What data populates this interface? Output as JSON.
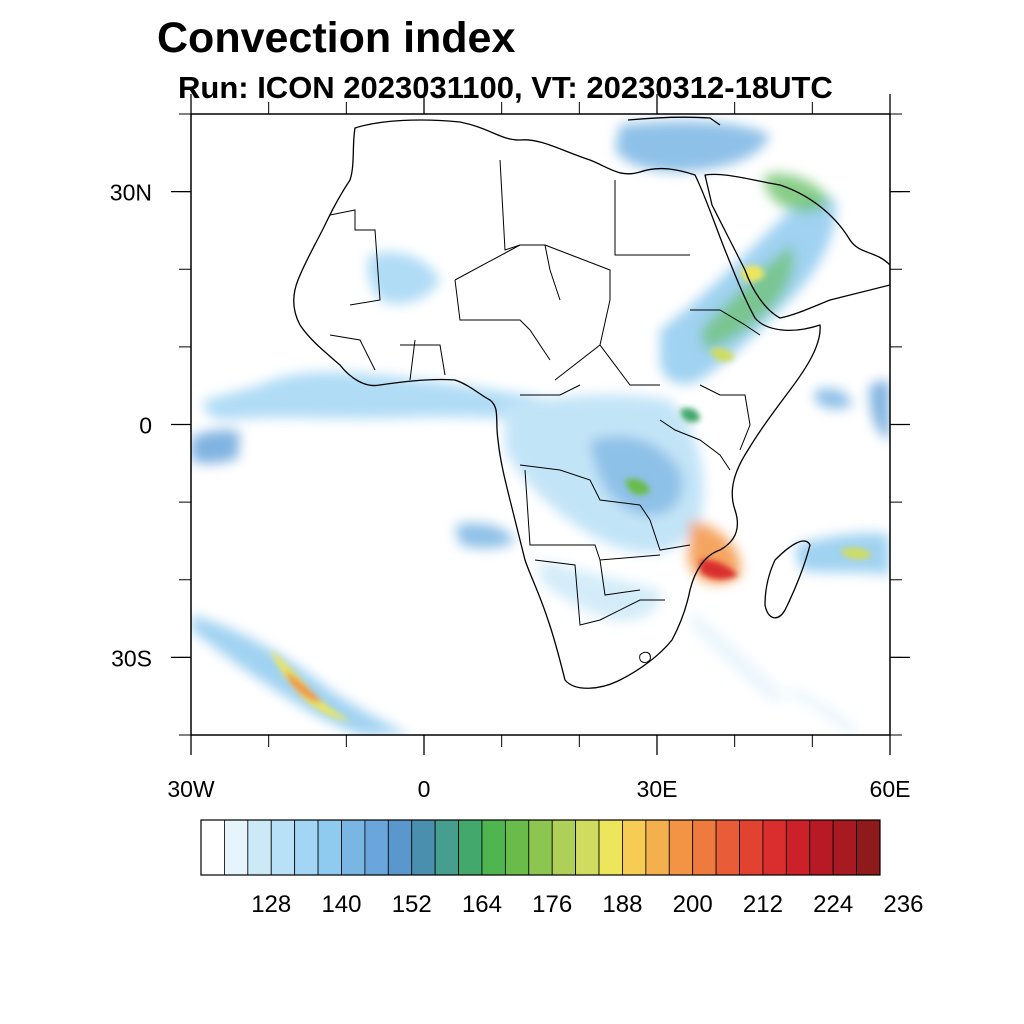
{
  "title": "Convection index",
  "subtitle": "Run: ICON 2023031100,  VT: 20230312-18UTC",
  "map": {
    "lon_range": [
      -30,
      60
    ],
    "lat_range": [
      -40,
      40
    ],
    "lat_ticks": [
      {
        "lat": 30,
        "label": "30N"
      },
      {
        "lat": 0,
        "label": "0"
      },
      {
        "lat": -30,
        "label": "30S"
      }
    ],
    "lon_ticks": [
      {
        "lon": -30,
        "label": "30W"
      },
      {
        "lon": 0,
        "label": "0"
      },
      {
        "lon": 30,
        "label": "30E"
      },
      {
        "lon": 60,
        "label": "60E"
      }
    ]
  },
  "colorbar": {
    "colors": [
      "#ffffff",
      "#e6f4fc",
      "#cce9f8",
      "#b8e0f6",
      "#a2d6f4",
      "#8fcaef",
      "#7ab6e4",
      "#6aa6dc",
      "#5a97cc",
      "#4b8fae",
      "#469e8e",
      "#43a86c",
      "#4fb54e",
      "#69bc4a",
      "#8cc550",
      "#aed059",
      "#cfdc60",
      "#ede65c",
      "#f7cc55",
      "#f5b04e",
      "#f39444",
      "#ef7a3d",
      "#e85d37",
      "#e24330",
      "#d92e2d",
      "#cc2129",
      "#b81a25",
      "#a71a21",
      "#8f1a1c"
    ],
    "labels": [
      "128",
      "140",
      "152",
      "164",
      "176",
      "188",
      "200",
      "212",
      "224",
      "236"
    ]
  }
}
